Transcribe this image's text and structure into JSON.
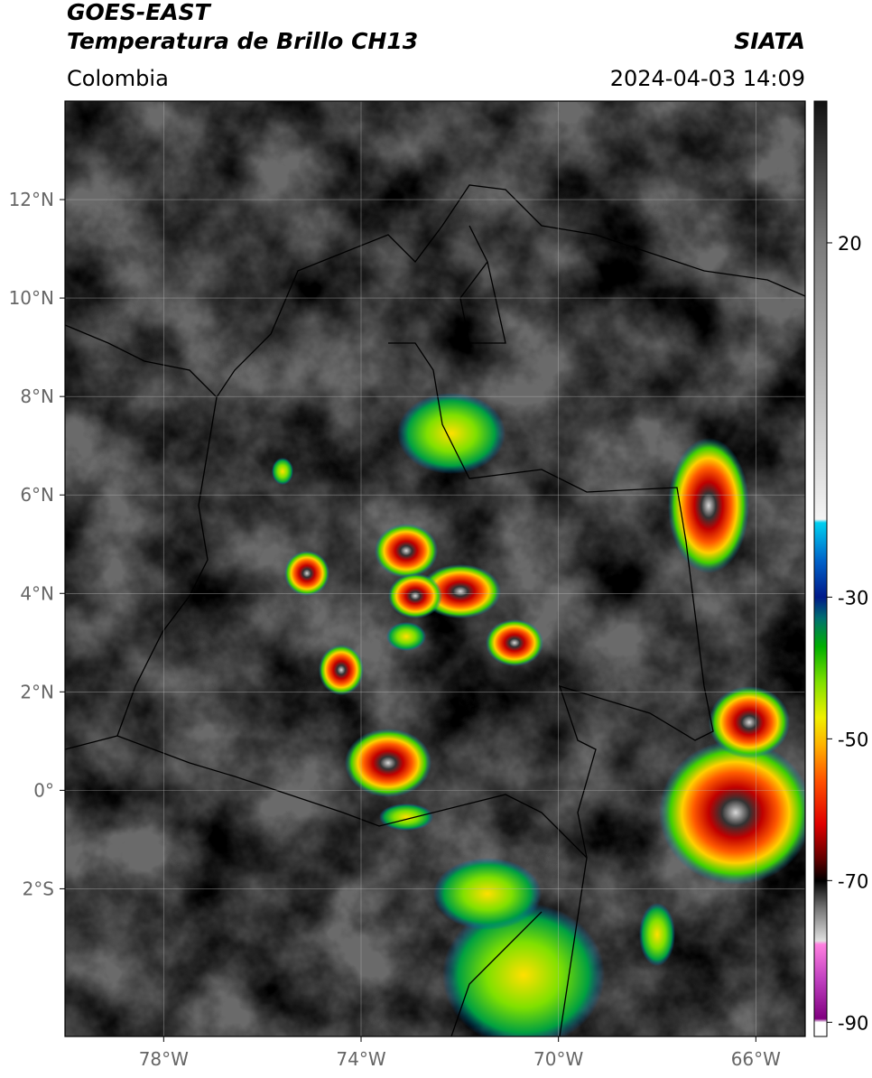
{
  "header": {
    "title": "GOES-EAST",
    "subtitle": "Temperatura de Brillo CH13",
    "region": "Colombia",
    "agency": "SIATA",
    "timestamp": "2024-04-03 14:09"
  },
  "map": {
    "xlim": [
      -80,
      -65
    ],
    "ylim": [
      -5,
      14
    ],
    "xticks": [
      {
        "value": -78,
        "label": "78°W"
      },
      {
        "value": -74,
        "label": "74°W"
      },
      {
        "value": -70,
        "label": "70°W"
      },
      {
        "value": -66,
        "label": "66°W"
      }
    ],
    "yticks": [
      {
        "value": 12,
        "label": "12°N"
      },
      {
        "value": 10,
        "label": "10°N"
      },
      {
        "value": 8,
        "label": "8°N"
      },
      {
        "value": 6,
        "label": "6°N"
      },
      {
        "value": 4,
        "label": "4°N"
      },
      {
        "value": 2,
        "label": "2°N"
      },
      {
        "value": 0,
        "label": "0°"
      },
      {
        "value": -2,
        "label": "2°S"
      }
    ],
    "grid": true
  },
  "colorbar": {
    "clim": [
      -92,
      40
    ],
    "ticks": [
      20,
      -30,
      -50,
      -70,
      -90
    ],
    "colormap": [
      {
        "value": 40,
        "color": "#111111"
      },
      {
        "value": 20,
        "color": "#7a7a7a"
      },
      {
        "value": -19,
        "color": "#f4f4f4"
      },
      {
        "value": -19.5,
        "color": "#00d0f0"
      },
      {
        "value": -25,
        "color": "#0060c8"
      },
      {
        "value": -30,
        "color": "#001a8a"
      },
      {
        "value": -33,
        "color": "#007070"
      },
      {
        "value": -37,
        "color": "#00b000"
      },
      {
        "value": -42,
        "color": "#80e000"
      },
      {
        "value": -47,
        "color": "#f0f000"
      },
      {
        "value": -51,
        "color": "#ffb000"
      },
      {
        "value": -56,
        "color": "#ff5000"
      },
      {
        "value": -62,
        "color": "#e00000"
      },
      {
        "value": -67,
        "color": "#600000"
      },
      {
        "value": -70,
        "color": "#000000"
      },
      {
        "value": -74,
        "color": "#777777"
      },
      {
        "value": -78.5,
        "color": "#e0e0e0"
      },
      {
        "value": -79,
        "color": "#ff80e0"
      },
      {
        "value": -84,
        "color": "#c040c0"
      },
      {
        "value": -89.5,
        "color": "#800080"
      },
      {
        "value": -90,
        "color": "#ffffff"
      },
      {
        "value": -92,
        "color": "#ffffff"
      }
    ]
  }
}
